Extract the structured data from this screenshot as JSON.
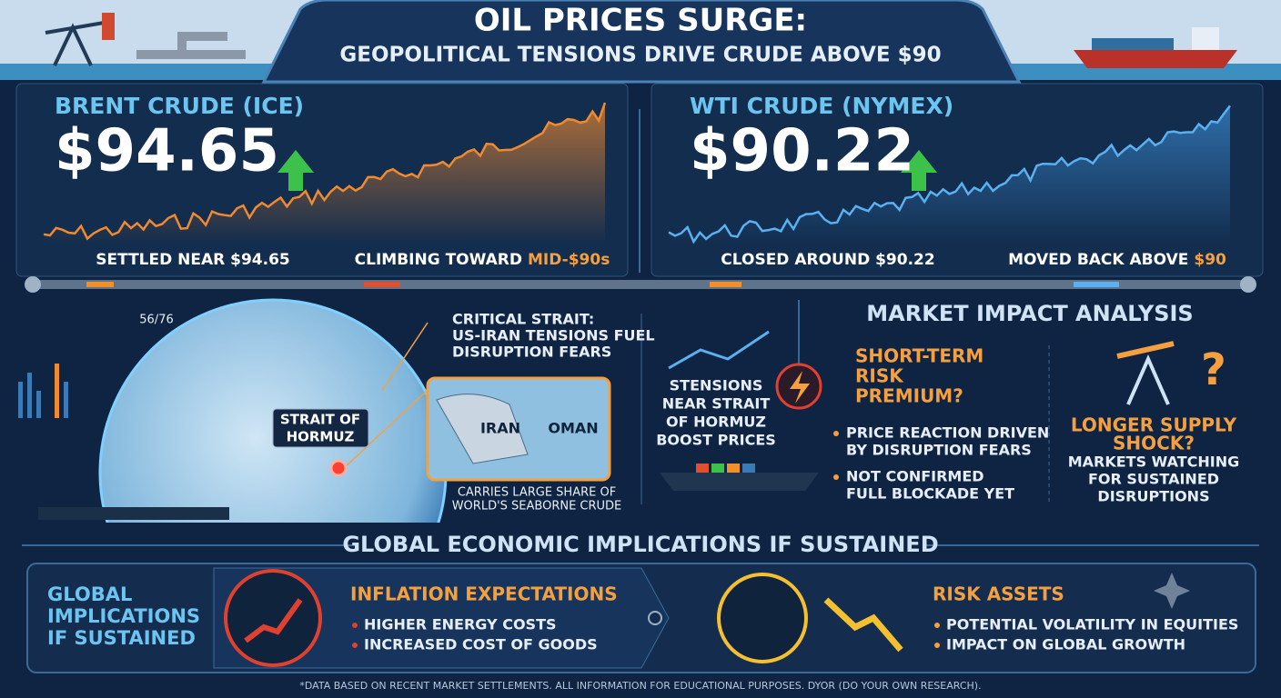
{
  "header": {
    "title": "OIL PRICES SURGE:",
    "subtitle": "GEOPOLITICAL TENSIONS DRIVE CRUDE ABOVE $90"
  },
  "brent": {
    "name": "BRENT CRUDE (ICE)",
    "price": "$94.65",
    "note_left": "SETTLED NEAR $94.65",
    "note_right_lead": "CLIMBING TOWARD",
    "note_right_highlight": "MID-$90s"
  },
  "wti": {
    "name": "WTI CRUDE (NYMEX)",
    "price": "$90.22",
    "note_left": "CLOSED AROUND $90.22",
    "note_right_lead": "MOVED BACK ABOVE",
    "note_right_highlight": "$90"
  },
  "map": {
    "corner_code": "56/76",
    "callout": [
      "CRITICAL STRAIT:",
      "US-IRAN TENSIONS FUEL",
      "DISRUPTION FEARS"
    ],
    "strait_label": [
      "STRAIT OF",
      "HORMUZ"
    ],
    "inset": [
      "IRAN",
      "OMAN"
    ],
    "caption": [
      "CARRIES LARGE SHARE OF",
      "WORLD'S SEABORNE CRUDE"
    ]
  },
  "tensions": [
    "STENSIONS",
    "NEAR STRAIT",
    "OF HORMUZ",
    "BOOST PRICES"
  ],
  "analysis": {
    "title": "MARKET IMPACT ANALYSIS",
    "short_term": {
      "title": [
        "SHORT-TERM",
        "RISK",
        "PREMIUM?"
      ],
      "bullets": [
        [
          "PRICE REACTION DRIVEN",
          "BY DISRUPTION FEARS"
        ],
        [
          "NOT CONFIRMED",
          "FULL BLOCKADE YET"
        ]
      ]
    },
    "longer": {
      "title": [
        "LONGER SUPPLY",
        "SHOCK?"
      ],
      "text": [
        "MARKETS WATCHING",
        "FOR SUSTAINED",
        "DISRUPTIONS"
      ]
    }
  },
  "implications": {
    "title": "GLOBAL ECONOMIC IMPLICATIONS IF SUSTAINED",
    "side_label": [
      "GLOBAL",
      "IMPLICATIONS",
      "IF SUSTAINED"
    ],
    "inflation": {
      "title": "INFLATION EXPECTATIONS",
      "bullets": [
        "HIGHER ENERGY COSTS",
        "INCREASED COST OF GOODS"
      ]
    },
    "risk": {
      "title": "RISK ASSETS",
      "bullets": [
        "POTENTIAL VOLATILITY IN EQUITIES",
        "IMPACT ON GLOBAL GROWTH"
      ]
    }
  },
  "footnote": "*DATA BASED ON RECENT MARKET SETTLEMENTS. ALL INFORMATION FOR EDUCATIONAL PURPOSES. DYOR (DO YOUR OWN RESEARCH)."
}
